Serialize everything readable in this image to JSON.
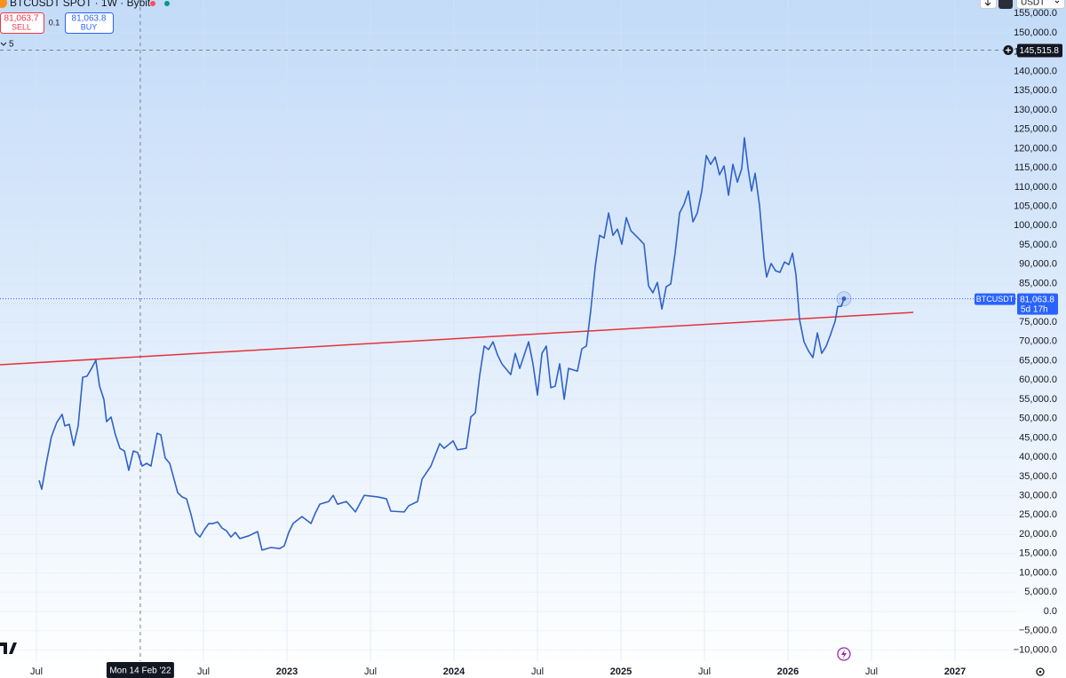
{
  "chart_data": {
    "type": "line",
    "header": {
      "title": "BTCUSDT SPOT · 1W · Bybit",
      "sell_price": "81,063.7",
      "sell": "SELL",
      "spread": "0.1",
      "buy_price": "81,063.8",
      "buy": "BUY",
      "indicators": "5",
      "currency": "USDT"
    },
    "x": [
      2021.516,
      2021.532,
      2021.559,
      2021.59,
      2021.622,
      2021.654,
      2021.67,
      2021.697,
      2021.723,
      2021.75,
      2021.777,
      2021.803,
      2021.83,
      2021.856,
      2021.878,
      2021.904,
      2021.92,
      2021.947,
      2021.973,
      2022.0,
      2022.027,
      2022.053,
      2022.08,
      2022.106,
      2022.133,
      2022.16,
      2022.186,
      2022.223,
      2022.245,
      2022.271,
      2022.298,
      2022.324,
      2022.346,
      2022.372,
      2022.399,
      2022.426,
      2022.452,
      2022.479,
      2022.505,
      2022.532,
      2022.559,
      2022.585,
      2022.612,
      2022.638,
      2022.665,
      2022.691,
      2022.718,
      2022.771,
      2022.824,
      2022.851,
      2022.904,
      2022.957,
      2022.984,
      2023.011,
      2023.037,
      2023.09,
      2023.144,
      2023.17,
      2023.197,
      2023.25,
      2023.277,
      2023.303,
      2023.356,
      2023.41,
      2023.463,
      2023.543,
      2023.596,
      2023.622,
      2023.702,
      2023.729,
      2023.782,
      2023.809,
      2023.862,
      2023.915,
      2023.941,
      2023.995,
      2024.021,
      2024.074,
      2024.101,
      2024.128,
      2024.154,
      2024.181,
      2024.207,
      2024.234,
      2024.261,
      2024.287,
      2024.34,
      2024.367,
      2024.394,
      2024.447,
      2024.473,
      2024.5,
      2024.527,
      2024.553,
      2024.58,
      2024.606,
      2024.633,
      2024.66,
      2024.686,
      2024.739,
      2024.766,
      2024.793,
      2024.819,
      2024.846,
      2024.872,
      2024.899,
      2024.926,
      2024.952,
      2024.979,
      2025.005,
      2025.032,
      2025.059,
      2025.112,
      2025.138,
      2025.165,
      2025.191,
      2025.218,
      2025.245,
      2025.271,
      2025.298,
      2025.324,
      2025.351,
      2025.378,
      2025.404,
      2025.431,
      2025.457,
      2025.484,
      2025.511,
      2025.537,
      2025.564,
      2025.59,
      2025.617,
      2025.644,
      2025.67,
      2025.697,
      2025.723,
      2025.739,
      2025.761,
      2025.782,
      2025.803,
      2025.83,
      2025.856,
      2025.872,
      2025.899,
      2025.926,
      2025.952,
      2025.979,
      2026.005,
      2026.027,
      2026.048,
      2026.069,
      2026.096,
      2026.122,
      2026.149,
      2026.176,
      2026.202,
      2026.229,
      2026.255,
      2026.282,
      2026.298,
      2026.319,
      2026.335
    ],
    "series": [
      {
        "name": "BTCUSDT",
        "color": "#2f62c8",
        "values": [
          34000,
          31700,
          38400,
          45300,
          49000,
          51100,
          48100,
          48500,
          43000,
          48100,
          60700,
          61000,
          63000,
          65100,
          58400,
          55000,
          49200,
          50400,
          45800,
          42300,
          41600,
          36600,
          41600,
          41200,
          37700,
          38400,
          37700,
          46200,
          45800,
          39800,
          38400,
          34300,
          30800,
          29700,
          29200,
          25100,
          20500,
          19300,
          21200,
          22800,
          22800,
          23200,
          21600,
          20900,
          19300,
          20500,
          18900,
          19600,
          20700,
          15900,
          16600,
          16300,
          17000,
          20500,
          22800,
          24600,
          22800,
          25500,
          27800,
          28500,
          30100,
          27800,
          28500,
          25800,
          30100,
          29700,
          29200,
          26000,
          25800,
          27400,
          28500,
          34300,
          37700,
          43500,
          42300,
          44200,
          41900,
          42300,
          50400,
          51500,
          61200,
          68800,
          67900,
          69900,
          66500,
          64200,
          61400,
          66900,
          63000,
          69900,
          64200,
          56100,
          66900,
          68800,
          58000,
          58400,
          64200,
          55000,
          63000,
          62300,
          68100,
          68800,
          78000,
          89500,
          97500,
          96800,
          103300,
          97500,
          99100,
          95200,
          102100,
          98700,
          96400,
          95200,
          84400,
          82600,
          85300,
          78400,
          84200,
          84900,
          92900,
          103300,
          105600,
          109000,
          101000,
          103300,
          109000,
          118200,
          115900,
          117800,
          113200,
          115500,
          107900,
          115900,
          111300,
          114800,
          122800,
          114800,
          109000,
          113600,
          105100,
          91800,
          86700,
          90200,
          88300,
          87900,
          90600,
          89900,
          92900,
          87200,
          75700,
          69900,
          67600,
          65800,
          72200,
          66900,
          68800,
          71800,
          75200,
          79100,
          79100,
          81063.8
        ]
      }
    ],
    "trendline": {
      "x": [
        2021.282,
        2026.75
      ],
      "values": [
        63950,
        77520
      ],
      "color": "#e5323d"
    },
    "last": {
      "name": "BTCUSDT",
      "value": 81063.8,
      "label": "81,063.8",
      "countdown": "5d 17h",
      "color": "#2962ff"
    },
    "crosshair": {
      "x": 2022.122,
      "x_label": "Mon 14 Feb '22",
      "y": 145515.8,
      "y_label": "145,515.8"
    },
    "xlim": [
      2021.282,
      2027.372
    ],
    "xticks": [
      {
        "value": 2021.5,
        "label": "Jul"
      },
      {
        "value": 2022.5,
        "label": "Jul"
      },
      2023,
      {
        "value": 2023.5,
        "label": "Jul"
      },
      2024,
      {
        "value": 2024.5,
        "label": "Jul"
      },
      2025,
      {
        "value": 2025.5,
        "label": "Jul"
      },
      2026,
      {
        "value": 2026.5,
        "label": "Jul"
      },
      2027
    ],
    "ylim": [
      -12880,
      158510
    ],
    "yticks": [
      {
        "value": -10000,
        "label": "−10,000.0"
      },
      {
        "value": -5000,
        "label": "−5,000.0"
      },
      {
        "value": 0,
        "label": "0.0"
      },
      {
        "value": 5000,
        "label": "5,000.0"
      },
      {
        "value": 10000,
        "label": "10,000.0"
      },
      {
        "value": 15000,
        "label": "15,000.0"
      },
      {
        "value": 20000,
        "label": "20,000.0"
      },
      {
        "value": 25000,
        "label": "25,000.0"
      },
      {
        "value": 30000,
        "label": "30,000.0"
      },
      {
        "value": 35000,
        "label": "35,000.0"
      },
      {
        "value": 40000,
        "label": "40,000.0"
      },
      {
        "value": 45000,
        "label": "45,000.0"
      },
      {
        "value": 50000,
        "label": "50,000.0"
      },
      {
        "value": 55000,
        "label": "55,000.0"
      },
      {
        "value": 60000,
        "label": "60,000.0"
      },
      {
        "value": 65000,
        "label": "65,000.0"
      },
      {
        "value": 70000,
        "label": "70,000.0"
      },
      {
        "value": 75000,
        "label": "75,000.0"
      },
      {
        "value": 80000,
        "label": "80,000.0"
      },
      {
        "value": 85000,
        "label": "85,000.0"
      },
      {
        "value": 90000,
        "label": "90,000.0"
      },
      {
        "value": 95000,
        "label": "95,000.0"
      },
      {
        "value": 100000,
        "label": "100,000.0"
      },
      {
        "value": 105000,
        "label": "105,000.0"
      },
      {
        "value": 110000,
        "label": "110,000.0"
      },
      {
        "value": 115000,
        "label": "115,000.0"
      },
      {
        "value": 120000,
        "label": "120,000.0"
      },
      {
        "value": 125000,
        "label": "125,000.0"
      },
      {
        "value": 130000,
        "label": "130,000.0"
      },
      {
        "value": 135000,
        "label": "135,000.0"
      },
      {
        "value": 140000,
        "label": "140,000.0"
      },
      {
        "value": 145000,
        "label": "145,000.0"
      },
      {
        "value": 150000,
        "label": "150,000.0"
      },
      {
        "value": 155000,
        "label": "155,000.0"
      }
    ],
    "grid": true
  }
}
